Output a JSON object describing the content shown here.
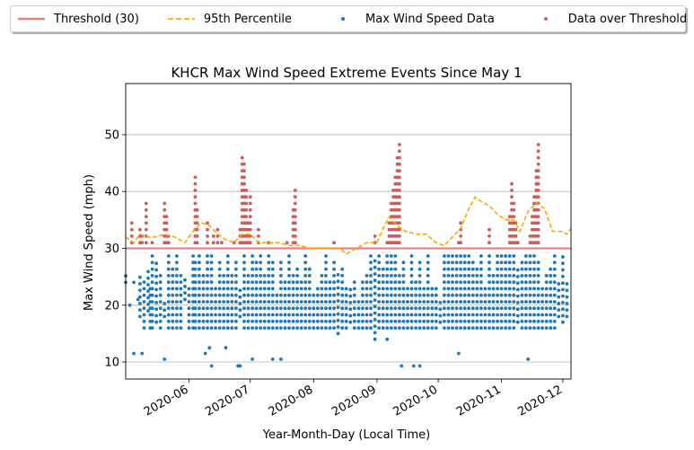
{
  "legend": {
    "items": [
      {
        "key": "threshold",
        "label": "Threshold (30)",
        "color": "#f08080",
        "style": "line"
      },
      {
        "key": "p95",
        "label": "95th Percentile",
        "color": "#ffa500",
        "style": "dashed"
      },
      {
        "key": "data",
        "label": "Max Wind Speed Data",
        "color": "#1f77b4",
        "style": "dot"
      },
      {
        "key": "over",
        "label": "Data over Threshold",
        "color": "#cd5c5c",
        "style": "dot"
      }
    ]
  },
  "chart_data": {
    "type": "scatter",
    "title": "KHCR Max Wind Speed Extreme Events Since May 1",
    "xlabel": "Year-Month-Day (Local Time)",
    "ylabel": "Max Wind Speed (mph)",
    "xlim": [
      "2020-05-01",
      "2020-12-05"
    ],
    "ylim": [
      7,
      59
    ],
    "yticks": [
      10,
      20,
      30,
      40,
      50
    ],
    "xticks": [
      "2020-06",
      "2020-07",
      "2020-08",
      "2020-09",
      "2020-10",
      "2020-11",
      "2020-12"
    ],
    "grid": "horizontal",
    "legend_position": "top, outside plot",
    "threshold": 30,
    "colors": {
      "data": "#1f77b4",
      "over": "#cd5c5c",
      "threshold": "#f08080",
      "p95": "#ffa500",
      "grid": "#b0b0b0"
    },
    "percentile_95": {
      "x": [
        "2020-05-01",
        "2020-05-05",
        "2020-05-08",
        "2020-05-12",
        "2020-05-16",
        "2020-05-20",
        "2020-05-25",
        "2020-05-30",
        "2020-06-03",
        "2020-06-07",
        "2020-06-11",
        "2020-06-15",
        "2020-06-19",
        "2020-06-23",
        "2020-06-27",
        "2020-07-01",
        "2020-07-05",
        "2020-07-10",
        "2020-07-15",
        "2020-07-20",
        "2020-07-25",
        "2020-07-30",
        "2020-08-04",
        "2020-08-09",
        "2020-08-14",
        "2020-08-17",
        "2020-08-22",
        "2020-08-27",
        "2020-09-01",
        "2020-09-04",
        "2020-09-07",
        "2020-09-11",
        "2020-09-15",
        "2020-09-20",
        "2020-09-25",
        "2020-09-30",
        "2020-10-04",
        "2020-10-08",
        "2020-10-12",
        "2020-10-16",
        "2020-10-19",
        "2020-10-23",
        "2020-10-26",
        "2020-10-30",
        "2020-11-03",
        "2020-11-07",
        "2020-11-10",
        "2020-11-14",
        "2020-11-18",
        "2020-11-22",
        "2020-11-26",
        "2020-11-30",
        "2020-12-03",
        "2020-12-05"
      ],
      "y": [
        32,
        31,
        32.5,
        32,
        32,
        32.5,
        32,
        31,
        33,
        34.5,
        34,
        32.5,
        31.5,
        31,
        32.5,
        32.5,
        31,
        31,
        31,
        30.5,
        30.5,
        30,
        30,
        30,
        30,
        29,
        30,
        31,
        31,
        33.5,
        35.5,
        34,
        33,
        32.5,
        32.5,
        31,
        30.5,
        32,
        33.5,
        37,
        39,
        38,
        37.5,
        36,
        35,
        35,
        33,
        36.5,
        38,
        37,
        33,
        33,
        32.5,
        33.5
      ]
    },
    "series": [
      {
        "name": "Max Wind Speed Data",
        "x": [
          "2020-05-01",
          "2020-05-03",
          "2020-05-05",
          "2020-05-07",
          "2020-05-08",
          "2020-05-10",
          "2020-05-12",
          "2020-05-13",
          "2020-05-14",
          "2020-05-16",
          "2020-05-18",
          "2020-05-20",
          "2020-05-22",
          "2020-05-24",
          "2020-05-26",
          "2020-05-28",
          "2020-05-30",
          "2020-06-01",
          "2020-06-03",
          "2020-06-04",
          "2020-06-06",
          "2020-06-08",
          "2020-06-10",
          "2020-06-12",
          "2020-06-14",
          "2020-06-16",
          "2020-06-18",
          "2020-06-20",
          "2020-06-22",
          "2020-06-24",
          "2020-06-26",
          "2020-06-28",
          "2020-06-30",
          "2020-07-02",
          "2020-07-04",
          "2020-07-06",
          "2020-07-08",
          "2020-07-10",
          "2020-07-12",
          "2020-07-14",
          "2020-07-16",
          "2020-07-18",
          "2020-07-20",
          "2020-07-22",
          "2020-07-24",
          "2020-07-26",
          "2020-07-28",
          "2020-07-30",
          "2020-08-01",
          "2020-08-03",
          "2020-08-05",
          "2020-08-07",
          "2020-08-09",
          "2020-08-11",
          "2020-08-13",
          "2020-08-15",
          "2020-08-17",
          "2020-08-19",
          "2020-08-21",
          "2020-08-23",
          "2020-08-25",
          "2020-08-27",
          "2020-08-29",
          "2020-08-31",
          "2020-09-02",
          "2020-09-04",
          "2020-09-06",
          "2020-09-08",
          "2020-09-10",
          "2020-09-12",
          "2020-09-14",
          "2020-09-16",
          "2020-09-18",
          "2020-09-20",
          "2020-09-22",
          "2020-09-24",
          "2020-09-26",
          "2020-09-28",
          "2020-09-30",
          "2020-10-02",
          "2020-10-04",
          "2020-10-06",
          "2020-10-08",
          "2020-10-10",
          "2020-10-12",
          "2020-10-14",
          "2020-10-16",
          "2020-10-18",
          "2020-10-20",
          "2020-10-22",
          "2020-10-24",
          "2020-10-26",
          "2020-10-28",
          "2020-10-30",
          "2020-11-01",
          "2020-11-03",
          "2020-11-05",
          "2020-11-07",
          "2020-11-09",
          "2020-11-11",
          "2020-11-13",
          "2020-11-15",
          "2020-11-17",
          "2020-11-19",
          "2020-11-21",
          "2020-11-23",
          "2020-11-25",
          "2020-11-27",
          "2020-11-29",
          "2020-12-01",
          "2020-12-03"
        ],
        "y_max": [
          26,
          21,
          25,
          22,
          26,
          25,
          27,
          24,
          29,
          28,
          26,
          21,
          29,
          27,
          29,
          26,
          25,
          24,
          29,
          28,
          29,
          26,
          29,
          29,
          23,
          28,
          26,
          29,
          26,
          28,
          23,
          29,
          26,
          29,
          28,
          29,
          26,
          29,
          28,
          22,
          28,
          25,
          29,
          26,
          27,
          25,
          29,
          27,
          22,
          24,
          26,
          29,
          25,
          28,
          26,
          27,
          24,
          23,
          25,
          21,
          25,
          26,
          29,
          28,
          29,
          27,
          29,
          29,
          29,
          26,
          28,
          24,
          29,
          25,
          28,
          23,
          29,
          24,
          23,
          21,
          29,
          29,
          29,
          29,
          29,
          29,
          29,
          28,
          27,
          29,
          24,
          29,
          26,
          29,
          29,
          29,
          29,
          29,
          27,
          28,
          29,
          29,
          29,
          28,
          24,
          26,
          27,
          29,
          24,
          29,
          24
        ],
        "y_min": [
          24,
          20,
          24,
          21,
          18,
          16,
          19,
          16,
          16,
          17,
          16,
          18,
          16,
          16,
          16,
          16,
          21,
          16,
          16,
          16,
          16,
          16,
          16,
          16,
          16,
          16,
          16,
          16,
          16,
          16,
          18,
          16,
          16,
          16,
          16,
          16,
          16,
          16,
          16,
          16,
          16,
          16,
          16,
          16,
          16,
          16,
          16,
          16,
          16,
          16,
          16,
          16,
          16,
          16,
          15,
          16,
          16,
          17,
          16,
          16,
          16,
          16,
          16,
          14,
          16,
          16,
          16,
          16,
          16,
          16,
          16,
          16,
          16,
          16,
          16,
          16,
          16,
          16,
          16,
          17,
          16,
          16,
          16,
          16,
          16,
          16,
          16,
          16,
          16,
          16,
          16,
          16,
          16,
          16,
          16,
          16,
          16,
          16,
          17,
          16,
          16,
          16,
          16,
          16,
          16,
          16,
          16,
          16,
          18,
          17,
          18
        ],
        "outliers_x": [
          "2020-05-05",
          "2020-05-09",
          "2020-05-20",
          "2020-06-09",
          "2020-06-11",
          "2020-06-12",
          "2020-06-19",
          "2020-06-25",
          "2020-06-26",
          "2020-07-02",
          "2020-07-12",
          "2020-07-16",
          "2020-09-06",
          "2020-09-13",
          "2020-09-19",
          "2020-09-22",
          "2020-10-11",
          "2020-11-14"
        ],
        "outliers_y": [
          11.5,
          11.5,
          10.5,
          11.5,
          12.5,
          9.3,
          12.5,
          9.3,
          9.3,
          10.5,
          10.5,
          10.5,
          14,
          9.3,
          9.3,
          9.3,
          11.5,
          10.5
        ]
      },
      {
        "name": "Data over Threshold",
        "x": [
          "2020-05-04",
          "2020-05-08",
          "2020-05-09",
          "2020-05-11",
          "2020-05-14",
          "2020-05-20",
          "2020-05-21",
          "2020-05-22",
          "2020-06-04",
          "2020-06-05",
          "2020-06-10",
          "2020-06-13",
          "2020-06-15",
          "2020-06-17",
          "2020-06-23",
          "2020-06-26",
          "2020-06-27",
          "2020-06-28",
          "2020-06-29",
          "2020-06-30",
          "2020-07-01",
          "2020-07-05",
          "2020-07-10",
          "2020-07-19",
          "2020-07-22",
          "2020-07-23",
          "2020-08-11",
          "2020-08-31",
          "2020-09-06",
          "2020-09-07",
          "2020-09-08",
          "2020-09-09",
          "2020-09-10",
          "2020-09-11",
          "2020-09-12",
          "2020-10-11",
          "2020-10-12",
          "2020-10-26",
          "2020-11-05",
          "2020-11-06",
          "2020-11-07",
          "2020-11-08",
          "2020-11-09",
          "2020-11-15",
          "2020-11-16",
          "2020-11-17",
          "2020-11-18",
          "2020-11-19"
        ],
        "y": [
          34.5,
          33.5,
          32.5,
          38,
          32,
          38,
          36,
          33,
          42.5,
          37,
          35,
          32.5,
          33.5,
          31,
          31,
          34,
          46,
          45,
          41,
          35,
          40,
          33.5,
          32,
          31,
          37,
          40.5,
          31,
          33,
          31,
          35,
          38,
          41,
          43,
          46,
          48.5,
          32,
          34.5,
          33.5,
          36.5,
          41.5,
          39,
          35,
          31,
          32.5,
          36,
          40,
          44,
          48.5
        ]
      }
    ]
  }
}
